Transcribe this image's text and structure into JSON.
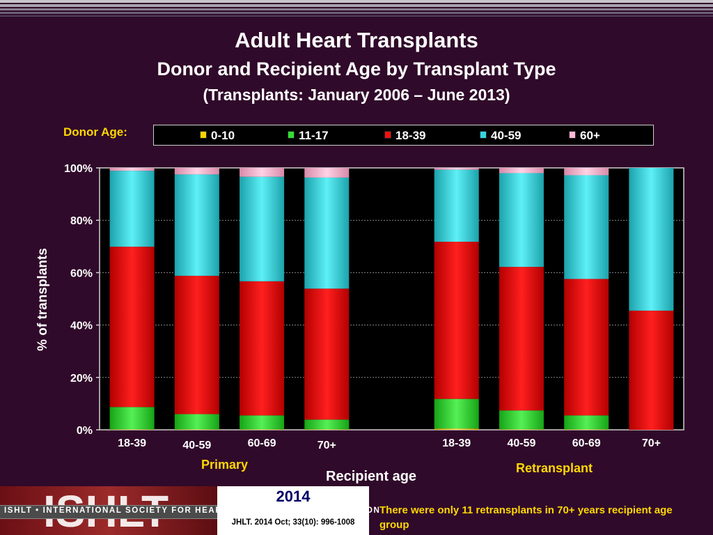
{
  "slide": {
    "title": "Adult Heart Transplants",
    "subtitle": "Donor and Recipient Age by Transplant Type",
    "period": "(Transplants: January 2006 – June 2013)"
  },
  "legend": {
    "label": "Donor  Age:",
    "items": [
      "0-10",
      "11-17",
      "18-39",
      "40-59",
      "60+"
    ]
  },
  "colors": {
    "0-10": "#ffd400",
    "11-17": "#33dd33",
    "18-39": "#ee1111",
    "40-59": "#33d6e0",
    "60+": "#ffb7d5",
    "background": "#300a2a",
    "accent_text": "#ffd700"
  },
  "chart_data": {
    "type": "bar",
    "stacked": true,
    "categories": [
      "18-39",
      "40-59",
      "60-69",
      "70+",
      "18-39",
      "40-59",
      "60-69",
      "70+"
    ],
    "groups": [
      {
        "name": "Primary",
        "categories": [
          "18-39",
          "40-59",
          "60-69",
          "70+"
        ]
      },
      {
        "name": "Retransplant",
        "categories": [
          "18-39",
          "40-59",
          "60-69",
          "70+"
        ]
      }
    ],
    "series": [
      {
        "name": "0-10",
        "values": [
          0.2,
          0.2,
          0.2,
          0.2,
          0.5,
          0.2,
          0.2,
          0
        ]
      },
      {
        "name": "11-17",
        "values": [
          8.5,
          5.8,
          5.3,
          3.7,
          11.3,
          7.2,
          5.3,
          0
        ]
      },
      {
        "name": "18-39",
        "values": [
          61.2,
          52.8,
          51.2,
          50.0,
          60.0,
          54.8,
          52.1,
          45.5
        ]
      },
      {
        "name": "40-59",
        "values": [
          29.0,
          38.7,
          39.9,
          42.4,
          27.5,
          35.8,
          39.6,
          54.5
        ]
      },
      {
        "name": "60+",
        "values": [
          1.1,
          2.5,
          3.4,
          3.7,
          0.7,
          2.0,
          2.8,
          0
        ]
      }
    ],
    "xlabel": "Recipient age",
    "ylabel": "% of transplants",
    "ylim": [
      0,
      100
    ],
    "yticks": [
      "0%",
      "20%",
      "40%",
      "60%",
      "80%",
      "100%"
    ],
    "grid": true,
    "legend_position": "top"
  },
  "footer": {
    "logo_text": "ISHLT",
    "band_text": "ISHLT • INTERNATIONAL SOCIETY FOR HEART AND LUNG TRANSPLANTATION",
    "year": "2014",
    "citation": "JHLT. 2014 Oct; 33(10): 996-1008",
    "note": "There were only 11 retransplants in 70+ years recipient age group"
  }
}
